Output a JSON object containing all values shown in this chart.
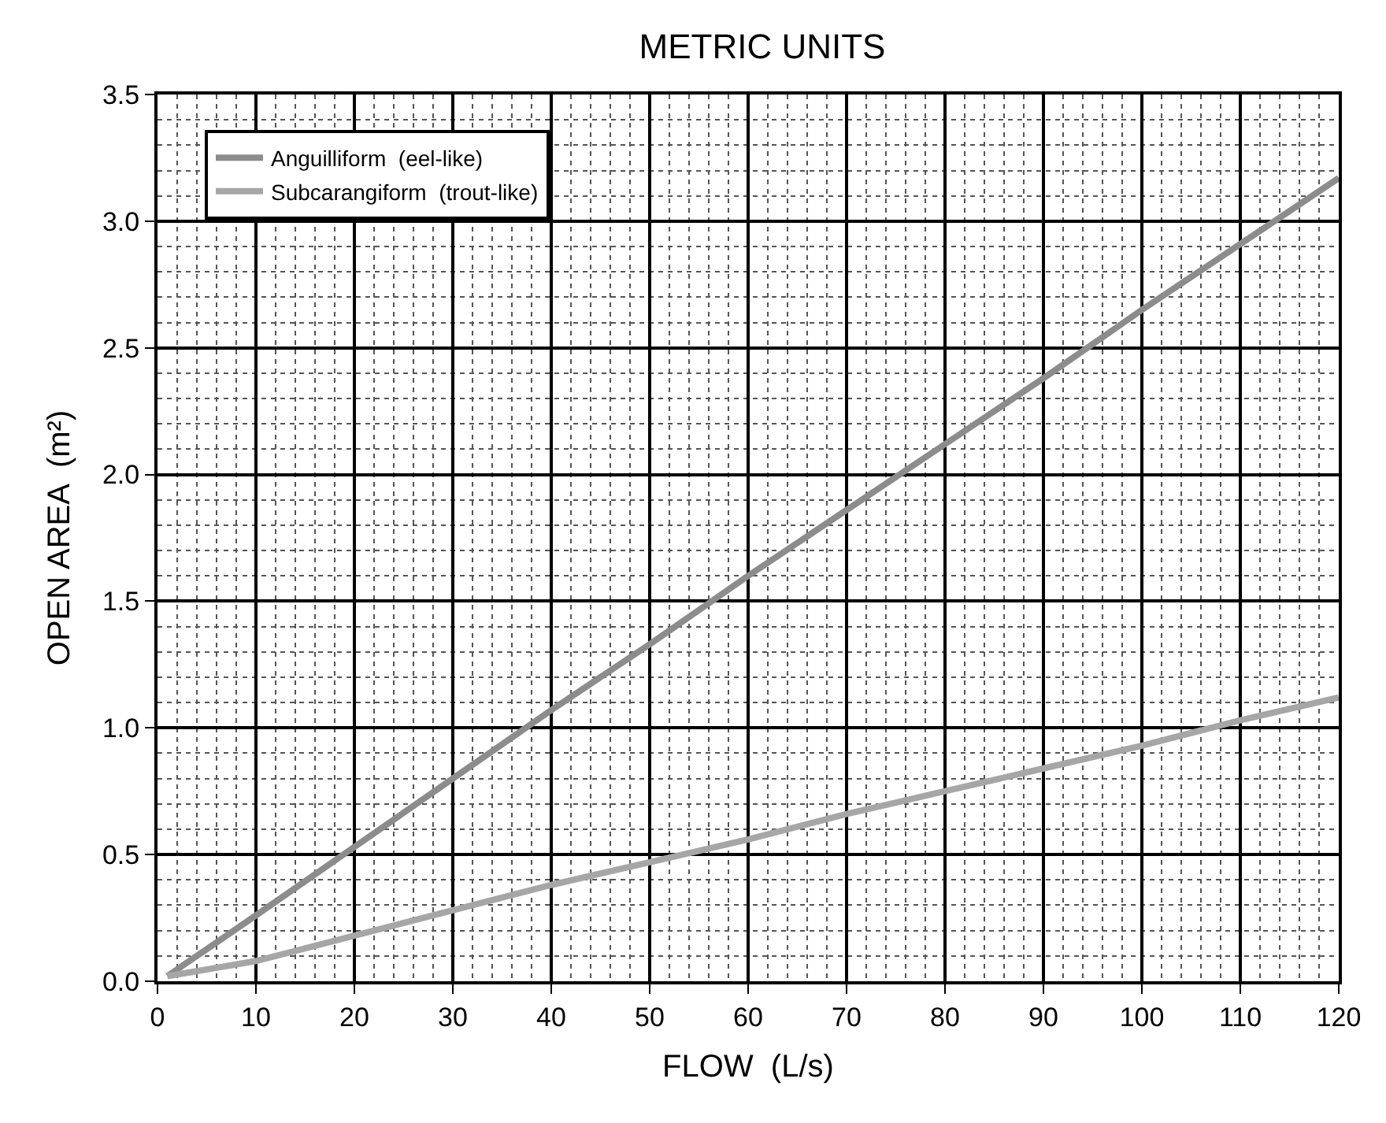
{
  "chart_data": {
    "type": "line",
    "title": "METRIC UNITS",
    "xlabel": "FLOW  (L/s)",
    "ylabel": "OPEN AREA  (m²)",
    "xlim": [
      0,
      120
    ],
    "xticks": [
      0,
      10,
      20,
      30,
      40,
      50,
      60,
      70,
      80,
      90,
      100,
      110,
      120
    ],
    "ylim": [
      0,
      3.5
    ],
    "yticks": [
      {
        "value": 0,
        "label": "0.0"
      },
      0.5,
      {
        "value": 1,
        "label": "1.0"
      },
      1.5,
      {
        "value": 2,
        "label": "2.0"
      },
      2.5,
      {
        "value": 3,
        "label": "3.0"
      },
      3.5
    ],
    "grid": true,
    "legend": "top left",
    "marker": "none",
    "line_style": "solid",
    "series": [
      {
        "name": "Anguilliform  (eel-like)",
        "color": "#8c8c8c",
        "x": [
          1,
          10,
          20,
          30,
          40,
          50,
          60,
          70,
          80,
          90,
          100,
          110,
          120
        ],
        "values": [
          0.02,
          0.26,
          0.53,
          0.8,
          1.07,
          1.33,
          1.6,
          1.86,
          2.12,
          2.38,
          2.65,
          2.91,
          3.17
        ]
      },
      {
        "name": "Subcarangiform  (trout-like)",
        "color": "#a6a6a6",
        "x": [
          1,
          10,
          20,
          30,
          40,
          50,
          60,
          70,
          80,
          90,
          100,
          110,
          120
        ],
        "values": [
          0.02,
          0.08,
          0.18,
          0.28,
          0.38,
          0.47,
          0.56,
          0.66,
          0.75,
          0.84,
          0.93,
          1.03,
          1.12
        ]
      }
    ]
  }
}
